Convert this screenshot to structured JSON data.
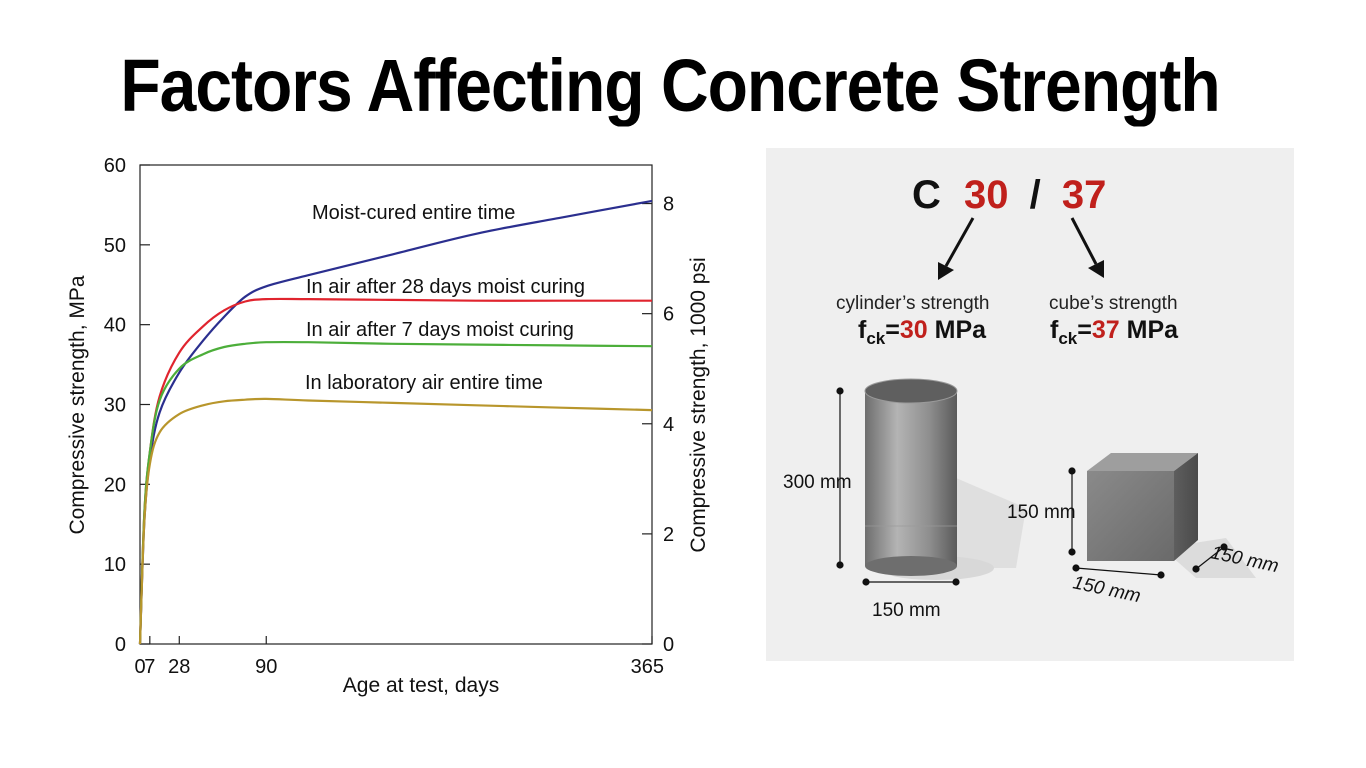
{
  "title": "Factors Affecting Concrete Strength",
  "chart_data": {
    "type": "line",
    "xlabel": "Age at test, days",
    "ylabel": "Compressive strength, MPa",
    "ylabel_right": "Compressive strength, 1000 psi",
    "xlim": [
      0,
      365
    ],
    "ylim": [
      0,
      60
    ],
    "y2lim": [
      0,
      8.7
    ],
    "x_ticks": [
      "0",
      "7",
      "28",
      "90",
      "365"
    ],
    "x_tick_values": [
      0,
      7,
      28,
      90,
      365
    ],
    "y_ticks": [
      "0",
      "10",
      "20",
      "30",
      "40",
      "50",
      "60"
    ],
    "y_tick_values": [
      0,
      10,
      20,
      30,
      40,
      50,
      60
    ],
    "y2_ticks": [
      "0",
      "2",
      "4",
      "6",
      "8"
    ],
    "y2_tick_values": [
      0,
      2,
      4,
      6,
      8
    ],
    "grid": false,
    "series": [
      {
        "name": "Moist-cured entire time",
        "color": "#2b2f8f",
        "x": [
          0,
          3,
          7,
          14,
          28,
          45,
          60,
          75,
          90,
          120,
          180,
          240,
          300,
          365
        ],
        "y": [
          0,
          15,
          23,
          29,
          34,
          38,
          41,
          43.5,
          44.8,
          46.2,
          48.8,
          51.4,
          53.4,
          55.5
        ]
      },
      {
        "name": "In air after 28 days moist curing",
        "color": "#e0242e",
        "x": [
          0,
          3,
          7,
          14,
          28,
          45,
          60,
          75,
          90,
          120,
          180,
          240,
          300,
          365
        ],
        "y": [
          0,
          16,
          24,
          31,
          36.5,
          39.8,
          41.8,
          42.9,
          43.2,
          43.2,
          43.1,
          43.0,
          43.0,
          43.0
        ]
      },
      {
        "name": "In air after 7 days moist curing",
        "color": "#4cae3a",
        "x": [
          0,
          3,
          7,
          14,
          28,
          45,
          60,
          75,
          90,
          120,
          180,
          240,
          300,
          365
        ],
        "y": [
          0,
          16,
          24,
          30.5,
          34.5,
          36.3,
          37.2,
          37.6,
          37.8,
          37.8,
          37.6,
          37.5,
          37.4,
          37.3
        ]
      },
      {
        "name": "In laboratory air entire time",
        "color": "#b8962c",
        "x": [
          0,
          3,
          7,
          14,
          28,
          45,
          60,
          75,
          90,
          120,
          180,
          240,
          300,
          365
        ],
        "y": [
          0,
          15,
          22.5,
          26.5,
          28.8,
          29.9,
          30.4,
          30.6,
          30.7,
          30.5,
          30.2,
          29.9,
          29.6,
          29.3
        ]
      }
    ]
  },
  "grade": {
    "prefix": "C",
    "cyl_value": "30",
    "slash": "/",
    "cube_value": "37",
    "accent_color": "#c0201c",
    "cylinder_caption": "cylinder’s strength",
    "cube_caption": "cube’s strength",
    "f_symbol": "f",
    "ck_subscript": "ck",
    "equals": "=",
    "unit": "MPa",
    "cyl_height": "300 mm",
    "cyl_diameter": "150 mm",
    "cube_height": "150 mm",
    "cube_width": "150 mm",
    "cube_depth": "150 mm"
  }
}
